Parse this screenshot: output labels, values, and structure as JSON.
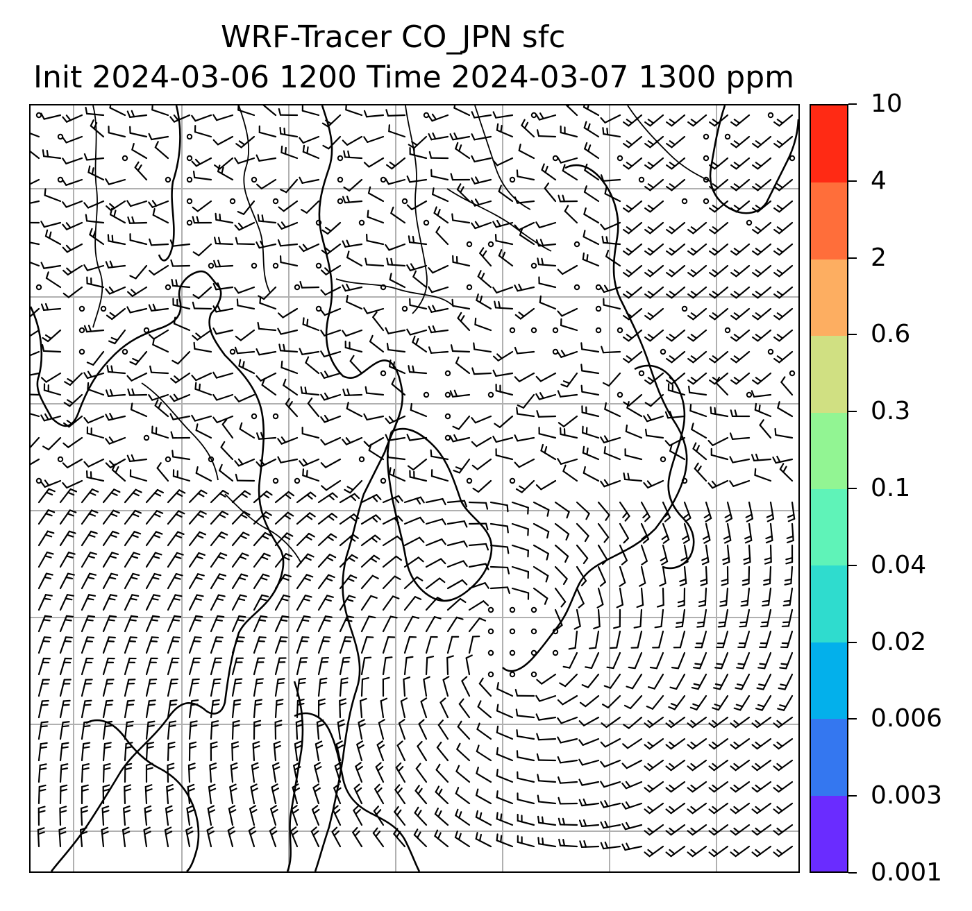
{
  "title": {
    "line1": "WRF-Tracer CO_JPN sfc",
    "line2": "Init 2024-03-06 1200 Time 2024-03-07 1300 ppm"
  },
  "map": {
    "field": "CO_JPN tracer concentration",
    "level": "sfc",
    "overlay": "wind barbs",
    "gridlines": true,
    "coastlines": true,
    "borders": true,
    "colors": {
      "gridline": "#b0b0b0",
      "coastline": "#000000",
      "barb": "#000000"
    }
  },
  "colorbar": {
    "labels": [
      "0.001",
      "0.003",
      "0.006",
      "0.02",
      "0.04",
      "0.1",
      "0.3",
      "0.6",
      "2",
      "4",
      "10"
    ],
    "colors": [
      "#6a2cff",
      "#3477f0",
      "#03b0eb",
      "#2fdcce",
      "#5ff3b8",
      "#92f593",
      "#d0e082",
      "#fdae61",
      "#ff6e3a",
      "#ff2a14"
    ]
  }
}
